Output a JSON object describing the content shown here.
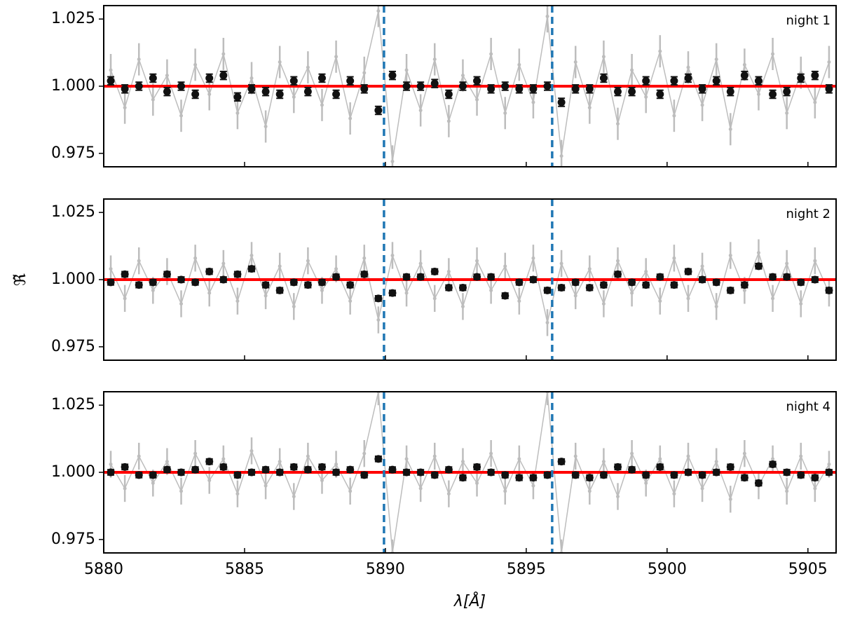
{
  "chart_data": [
    {
      "type": "scatter",
      "annotation": "night 1",
      "xlim": [
        5880,
        5906
      ],
      "xticks": [
        5880,
        5885,
        5890,
        5895,
        5900,
        5905
      ],
      "ylim": [
        0.97,
        1.03
      ],
      "yticks": [
        0.975,
        {
          "value": 1.0,
          "label": "1.000"
        },
        1.025
      ],
      "vlines": [
        5889.95,
        5895.92
      ],
      "vline_color": "#1f77b4",
      "hline": 1.0,
      "hline_color": "#ff0000",
      "x": [
        5880.25,
        5880.75,
        5881.25,
        5881.75,
        5882.25,
        5882.75,
        5883.25,
        5883.75,
        5884.25,
        5884.75,
        5885.25,
        5885.75,
        5886.25,
        5886.75,
        5887.25,
        5887.75,
        5888.25,
        5888.75,
        5889.25,
        5889.75,
        5890.25,
        5890.75,
        5891.25,
        5891.75,
        5892.25,
        5892.75,
        5893.25,
        5893.75,
        5894.25,
        5894.75,
        5895.25,
        5895.75,
        5896.25,
        5896.75,
        5897.25,
        5897.75,
        5898.25,
        5898.75,
        5899.25,
        5899.75,
        5900.25,
        5900.75,
        5901.25,
        5901.75,
        5902.25,
        5902.75,
        5903.25,
        5903.75,
        5904.25,
        5904.75,
        5905.25,
        5905.75
      ],
      "series": [
        {
          "color": "#bdbdbd",
          "error": 0.006,
          "values": [
            1.006,
            0.992,
            1.01,
            0.995,
            1.004,
            0.989,
            1.008,
            0.997,
            1.012,
            0.99,
            1.003,
            0.985,
            1.009,
            0.996,
            1.007,
            0.993,
            1.011,
            0.988,
            1.005,
            1.028,
            0.972,
            1.006,
            0.991,
            1.01,
            0.987,
            1.004,
            0.995,
            1.012,
            0.99,
            1.008,
            0.994,
            1.026,
            0.974,
            1.009,
            0.992,
            1.011,
            0.986,
            1.006,
            0.996,
            1.013,
            0.989,
            1.007,
            0.993,
            1.01,
            0.984,
            1.008,
            0.997,
            1.012,
            0.99,
            1.005,
            0.994,
            1.009
          ]
        },
        {
          "color": "#111111",
          "error": 0.0015,
          "values": [
            1.002,
            0.999,
            1.0,
            1.003,
            0.998,
            1.0,
            0.997,
            1.003,
            1.004,
            0.996,
            0.999,
            0.998,
            0.997,
            1.002,
            0.998,
            1.003,
            0.997,
            1.002,
            0.999,
            0.991,
            1.004,
            1.0,
            1.0,
            1.001,
            0.997,
            1.0,
            1.002,
            0.999,
            1.0,
            0.999,
            0.999,
            1.0,
            0.994,
            0.999,
            0.999,
            1.003,
            0.998,
            0.998,
            1.002,
            0.997,
            1.002,
            1.003,
            0.999,
            1.002,
            0.998,
            1.004,
            1.002,
            0.997,
            0.998,
            1.003,
            1.004,
            0.999
          ]
        }
      ]
    },
    {
      "type": "scatter",
      "annotation": "night 2",
      "ylabel": "ℜ̃",
      "xlim": [
        5880,
        5906
      ],
      "xticks": [
        5880,
        5885,
        5890,
        5895,
        5900,
        5905
      ],
      "ylim": [
        0.97,
        1.03
      ],
      "yticks": [
        0.975,
        {
          "value": 1.0,
          "label": "1.000"
        },
        1.025
      ],
      "vlines": [
        5889.95,
        5895.92
      ],
      "vline_color": "#1f77b4",
      "hline": 1.0,
      "hline_color": "#ff0000",
      "x": [
        5880.25,
        5880.75,
        5881.25,
        5881.75,
        5882.25,
        5882.75,
        5883.25,
        5883.75,
        5884.25,
        5884.75,
        5885.25,
        5885.75,
        5886.25,
        5886.75,
        5887.25,
        5887.75,
        5888.25,
        5888.75,
        5889.25,
        5889.75,
        5890.25,
        5890.75,
        5891.25,
        5891.75,
        5892.25,
        5892.75,
        5893.25,
        5893.75,
        5894.25,
        5894.75,
        5895.25,
        5895.75,
        5896.25,
        5896.75,
        5897.25,
        5897.75,
        5898.25,
        5898.75,
        5899.25,
        5899.75,
        5900.25,
        5900.75,
        5901.25,
        5901.75,
        5902.25,
        5902.75,
        5903.25,
        5903.75,
        5904.25,
        5904.75,
        5905.25,
        5905.75
      ],
      "series": [
        {
          "color": "#bdbdbd",
          "error": 0.005,
          "values": [
            1.004,
            0.993,
            1.007,
            0.996,
            1.003,
            0.991,
            1.008,
            0.995,
            1.006,
            0.992,
            1.009,
            0.994,
            1.005,
            0.99,
            1.007,
            0.996,
            1.004,
            0.992,
            1.008,
            0.985,
            1.009,
            0.995,
            1.006,
            0.993,
            1.003,
            0.99,
            1.007,
            0.996,
            1.005,
            0.992,
            1.008,
            0.984,
            1.006,
            0.994,
            1.004,
            0.991,
            1.007,
            0.995,
            1.003,
            0.992,
            1.008,
            0.993,
            1.005,
            0.99,
            1.009,
            0.996,
            1.01,
            0.993,
            1.006,
            0.991,
            1.007,
            0.995
          ]
        },
        {
          "color": "#111111",
          "error": 0.001,
          "values": [
            0.999,
            1.002,
            0.998,
            0.999,
            1.002,
            1.0,
            0.999,
            1.003,
            1.0,
            1.002,
            1.004,
            0.998,
            0.996,
            0.999,
            0.998,
            0.999,
            1.001,
            0.998,
            1.002,
            0.993,
            0.995,
            1.001,
            1.001,
            1.003,
            0.997,
            0.997,
            1.001,
            1.001,
            0.994,
            0.999,
            1.0,
            0.996,
            0.997,
            0.999,
            0.997,
            0.998,
            1.002,
            0.999,
            0.998,
            1.001,
            0.998,
            1.003,
            1.0,
            0.999,
            0.996,
            0.998,
            1.005,
            1.001,
            1.001,
            0.999,
            1.0,
            0.996
          ]
        }
      ]
    },
    {
      "type": "scatter",
      "annotation": "night 4",
      "xlabel": "λ[Å]",
      "xlim": [
        5880,
        5906
      ],
      "xticks": [
        5880,
        5885,
        5890,
        5895,
        5900,
        5905
      ],
      "ylim": [
        0.97,
        1.03
      ],
      "yticks": [
        0.975,
        {
          "value": 1.0,
          "label": "1.000"
        },
        1.025
      ],
      "vlines": [
        5889.95,
        5895.92
      ],
      "vline_color": "#1f77b4",
      "hline": 1.0,
      "hline_color": "#ff0000",
      "x": [
        5880.25,
        5880.75,
        5881.25,
        5881.75,
        5882.25,
        5882.75,
        5883.25,
        5883.75,
        5884.25,
        5884.75,
        5885.25,
        5885.75,
        5886.25,
        5886.75,
        5887.25,
        5887.75,
        5888.25,
        5888.75,
        5889.25,
        5889.75,
        5890.25,
        5890.75,
        5891.25,
        5891.75,
        5892.25,
        5892.75,
        5893.25,
        5893.75,
        5894.25,
        5894.75,
        5895.25,
        5895.75,
        5896.25,
        5896.75,
        5897.25,
        5897.75,
        5898.25,
        5898.75,
        5899.25,
        5899.75,
        5900.25,
        5900.75,
        5901.25,
        5901.75,
        5902.25,
        5902.75,
        5903.25,
        5903.75,
        5904.25,
        5904.75,
        5905.25,
        5905.75
      ],
      "series": [
        {
          "color": "#bdbdbd",
          "error": 0.005,
          "values": [
            1.003,
            0.994,
            1.006,
            0.996,
            1.004,
            0.993,
            1.007,
            0.997,
            1.005,
            0.992,
            1.008,
            0.995,
            1.004,
            0.991,
            1.006,
            0.997,
            1.003,
            0.993,
            1.007,
            1.03,
            0.97,
            1.005,
            0.994,
            1.006,
            0.992,
            1.004,
            0.996,
            1.007,
            0.993,
            1.005,
            0.995,
            1.03,
            0.97,
            1.006,
            0.993,
            1.004,
            0.991,
            1.007,
            0.996,
            1.005,
            0.992,
            1.006,
            0.994,
            1.004,
            0.99,
            1.007,
            0.995,
            1.005,
            0.993,
            1.006,
            0.994,
            1.003
          ]
        },
        {
          "color": "#111111",
          "error": 0.001,
          "values": [
            1.0,
            1.002,
            0.999,
            0.999,
            1.001,
            1.0,
            1.001,
            1.004,
            1.002,
            0.999,
            1.0,
            1.001,
            1.0,
            1.002,
            1.001,
            1.002,
            1.0,
            1.001,
            0.999,
            1.005,
            1.001,
            1.0,
            1.0,
            0.999,
            1.001,
            0.998,
            1.002,
            1.0,
            0.999,
            0.998,
            0.998,
            0.999,
            1.004,
            0.999,
            0.998,
            0.999,
            1.002,
            1.001,
            0.999,
            1.002,
            0.999,
            1.0,
            0.999,
            1.0,
            1.002,
            0.998,
            0.996,
            1.003,
            1.0,
            0.999,
            0.998,
            1.0
          ]
        }
      ]
    }
  ]
}
